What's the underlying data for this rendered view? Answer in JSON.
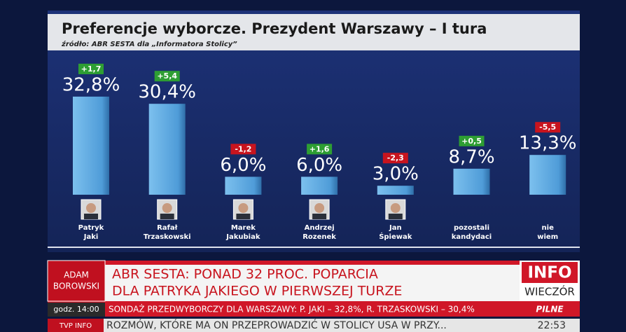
{
  "chart_data": {
    "type": "bar",
    "title": "Preferencje wyborcze. Prezydent Warszawy – I tura",
    "subtitle": "źródło: ABR SESTA dla „Informatora Stolicy”",
    "categories": [
      [
        "Patryk",
        "Jaki"
      ],
      [
        "Rafał",
        "Trzaskowski"
      ],
      [
        "Marek",
        "Jakubiak"
      ],
      [
        "Andrzej",
        "Rozenek"
      ],
      [
        "Jan",
        "Śpiewak"
      ],
      [
        "pozostali",
        "kandydaci"
      ],
      [
        "nie",
        "wiem"
      ]
    ],
    "values": [
      32.8,
      30.4,
      6.0,
      6.0,
      3.0,
      8.7,
      13.3
    ],
    "value_labels": [
      "32,8%",
      "30,4%",
      "6,0%",
      "6,0%",
      "3,0%",
      "8,7%",
      "13,3%"
    ],
    "changes": [
      1.7,
      5.4,
      -1.2,
      1.6,
      -2.3,
      0.5,
      -5.5
    ],
    "change_labels": [
      "+1,7",
      "+5,4",
      "-1,2",
      "+1,6",
      "-2,3",
      "+0,5",
      "-5,5"
    ],
    "color": "#5aa8e0",
    "change_colors": {
      "positive": "#2e9e33",
      "negative": "#c8141e"
    }
  },
  "ticker": {
    "anchor": [
      "ADAM",
      "BOROWSKI"
    ],
    "headline": [
      "ABR SESTA: PONAD 32 PROC. POPARCIA",
      "DLA PATRYKA JAKIEGO W PIERWSZEJ TURZE"
    ],
    "logo": [
      "INFO",
      "WIECZÓR"
    ],
    "time": "godz. 14:00",
    "strap": "SONDAŻ PRZEDWYBORCZY DLA WARSZAWY: P. JAKI – 32,8%, R. TRZASKOWSKI – 30,4%",
    "flag": "PILNE",
    "channel": "TVP INFO",
    "crawl": "ROZMÓW, KTÓRE MA ON PRZEPROWADZIĆ W STOLICY USA W PRZY...",
    "clock": "22:53"
  }
}
